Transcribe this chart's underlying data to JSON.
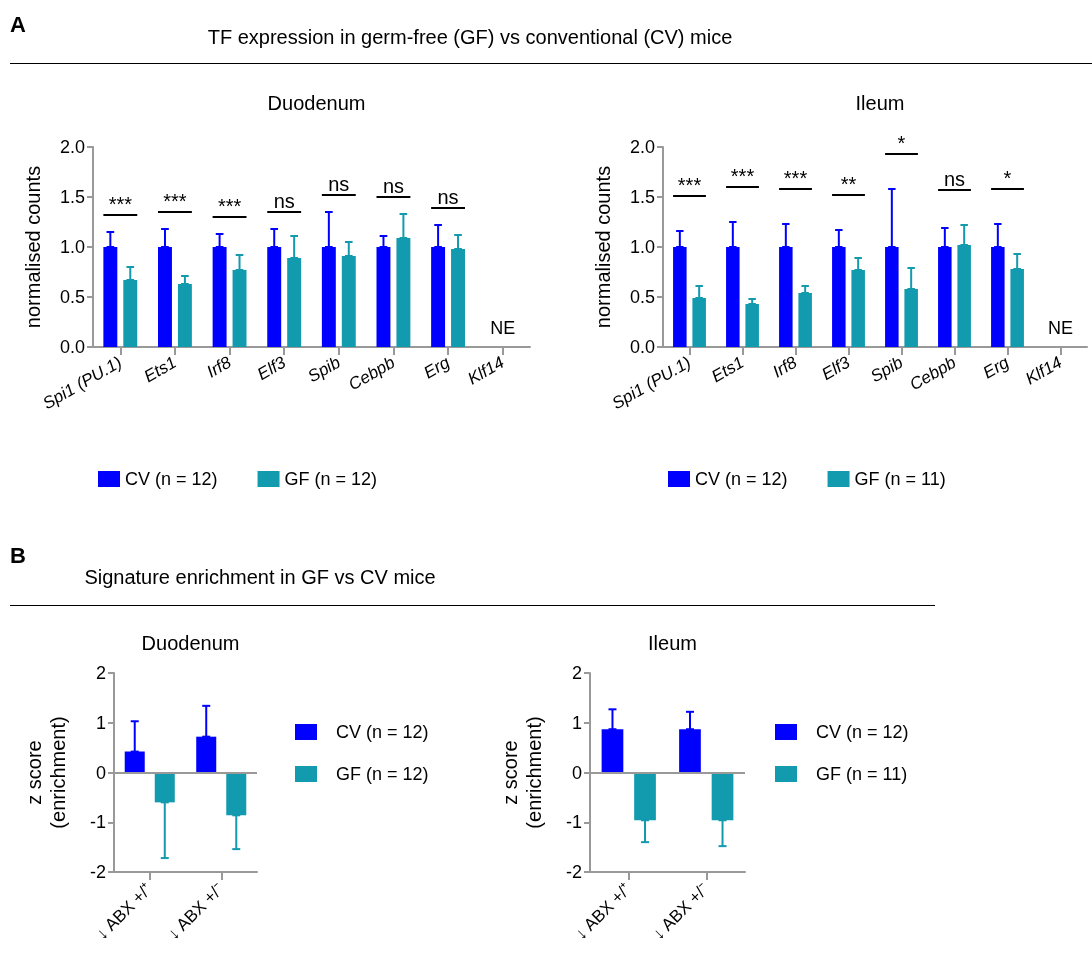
{
  "chart_data": [
    {
      "type": "bar",
      "title": "Duodenum",
      "subtitle": "TF expression in germ-free (GF) vs conventional (CV) mice",
      "ylabel": "normalised counts",
      "categories": [
        "Spi1 (PU.1)",
        "Ets1",
        "Irf8",
        "Elf3",
        "Spib",
        "Cebpb",
        "Erg",
        "Klf14"
      ],
      "series": [
        {
          "name": "CV (n = 12)",
          "color": "#0000ff",
          "values": [
            1.0,
            1.0,
            1.0,
            1.0,
            1.0,
            1.0,
            1.0,
            null
          ],
          "errors": [
            [
              1.0,
              1.15
            ],
            [
              1.0,
              1.18
            ],
            [
              1.0,
              1.13
            ],
            [
              1.0,
              1.18
            ],
            [
              1.0,
              1.35
            ],
            [
              1.0,
              1.11
            ],
            [
              1.0,
              1.22
            ],
            null
          ]
        },
        {
          "name": "GF (n = 12)",
          "color": "#129aae",
          "values": [
            0.67,
            0.63,
            0.77,
            0.89,
            0.91,
            1.09,
            0.98,
            null
          ],
          "errors": [
            [
              0.67,
              0.8
            ],
            [
              0.63,
              0.71
            ],
            [
              0.77,
              0.92
            ],
            [
              0.89,
              1.11
            ],
            [
              0.91,
              1.05
            ],
            [
              1.09,
              1.33
            ],
            [
              0.98,
              1.12
            ],
            null
          ]
        }
      ],
      "ylim": [
        0,
        2
      ],
      "yticks": [
        {
          "value": 0,
          "label": "0.0"
        },
        {
          "value": 0.5,
          "label": "0.5"
        },
        {
          "value": 1,
          "label": "1.0"
        },
        {
          "value": 1.5,
          "label": "1.5"
        },
        {
          "value": 2,
          "label": "2.0"
        }
      ],
      "grid": false,
      "legend": "bottom",
      "annotations": [
        "***",
        "***",
        "***",
        "ns",
        "ns",
        "ns",
        "ns",
        "NE",
        "A"
      ]
    },
    {
      "type": "bar",
      "title": "Ileum",
      "ylabel": "normalised counts",
      "categories": [
        "Spi1 (PU.1)",
        "Ets1",
        "Irf8",
        "Elf3",
        "Spib",
        "Cebpb",
        "Erg",
        "Klf14"
      ],
      "series": [
        {
          "name": "CV (n = 12)",
          "color": "#0000ff",
          "values": [
            1.0,
            1.0,
            1.0,
            1.0,
            1.0,
            1.0,
            1.0,
            null
          ],
          "errors": [
            [
              1.0,
              1.16
            ],
            [
              1.0,
              1.25
            ],
            [
              1.0,
              1.23
            ],
            [
              1.0,
              1.17
            ],
            [
              1.0,
              1.58
            ],
            [
              1.0,
              1.19
            ],
            [
              1.0,
              1.23
            ],
            null
          ]
        },
        {
          "name": "GF (n = 11)",
          "color": "#129aae",
          "values": [
            0.49,
            0.43,
            0.54,
            0.77,
            0.58,
            1.02,
            0.78,
            null
          ],
          "errors": [
            [
              0.49,
              0.61
            ],
            [
              0.43,
              0.48
            ],
            [
              0.54,
              0.61
            ],
            [
              0.77,
              0.89
            ],
            [
              0.58,
              0.79
            ],
            [
              1.02,
              1.22
            ],
            [
              0.78,
              0.93
            ],
            null
          ]
        }
      ],
      "ylim": [
        0,
        2
      ],
      "yticks": [
        {
          "value": 0,
          "label": "0.0"
        },
        {
          "value": 0.5,
          "label": "0.5"
        },
        {
          "value": 1,
          "label": "1.0"
        },
        {
          "value": 1.5,
          "label": "1.5"
        },
        {
          "value": 2,
          "label": "2.0"
        }
      ],
      "grid": false,
      "legend": "bottom",
      "annotations": [
        "***",
        "***",
        "***",
        "**",
        "*",
        "ns",
        "*",
        "NE"
      ]
    },
    {
      "type": "bar",
      "title": "Duodenum",
      "subtitle": "Signature enrichment in GF vs CV mice",
      "ylabel": "z score (enrichment)",
      "categories": [
        "↓ ABX +/⁺",
        "↓ ABX +/⁻"
      ],
      "series": [
        {
          "name": "CV (n = 12)",
          "color": "#0000ff",
          "values": [
            0.42,
            0.72
          ],
          "errors": [
            [
              0.42,
              1.03
            ],
            [
              0.72,
              1.34
            ]
          ]
        },
        {
          "name": "GF (n = 12)",
          "color": "#129aae",
          "values": [
            -0.6,
            -0.86
          ],
          "errors": [
            [
              -1.72,
              -0.6
            ],
            [
              -1.54,
              -0.86
            ]
          ]
        }
      ],
      "ylim": [
        -2,
        2
      ],
      "yticks": [
        -2,
        -1,
        0,
        1,
        2
      ],
      "grid": false,
      "legend": "right",
      "ref_lines": [
        {
          "axis": "y",
          "value": 0,
          "color": "#999999"
        }
      ],
      "annotations": [
        "B"
      ]
    },
    {
      "type": "bar",
      "title": "Ileum",
      "ylabel": "z score (enrichment)",
      "categories": [
        "↓ ABX +/⁺",
        "↓ ABX +/⁻"
      ],
      "series": [
        {
          "name": "CV (n = 12)",
          "color": "#0000ff",
          "values": [
            0.87,
            0.87
          ],
          "errors": [
            [
              0.87,
              1.27
            ],
            [
              0.87,
              1.22
            ]
          ]
        },
        {
          "name": "GF (n = 11)",
          "color": "#129aae",
          "values": [
            -0.96,
            -0.96
          ],
          "errors": [
            [
              -1.4,
              -0.96
            ],
            [
              -1.48,
              -0.96
            ]
          ]
        }
      ],
      "ylim": [
        -2,
        2
      ],
      "yticks": [
        -2,
        -1,
        0,
        1,
        2
      ],
      "grid": false,
      "legend": "right",
      "ref_lines": [
        {
          "axis": "y",
          "value": 0,
          "color": "#999999"
        }
      ]
    }
  ]
}
